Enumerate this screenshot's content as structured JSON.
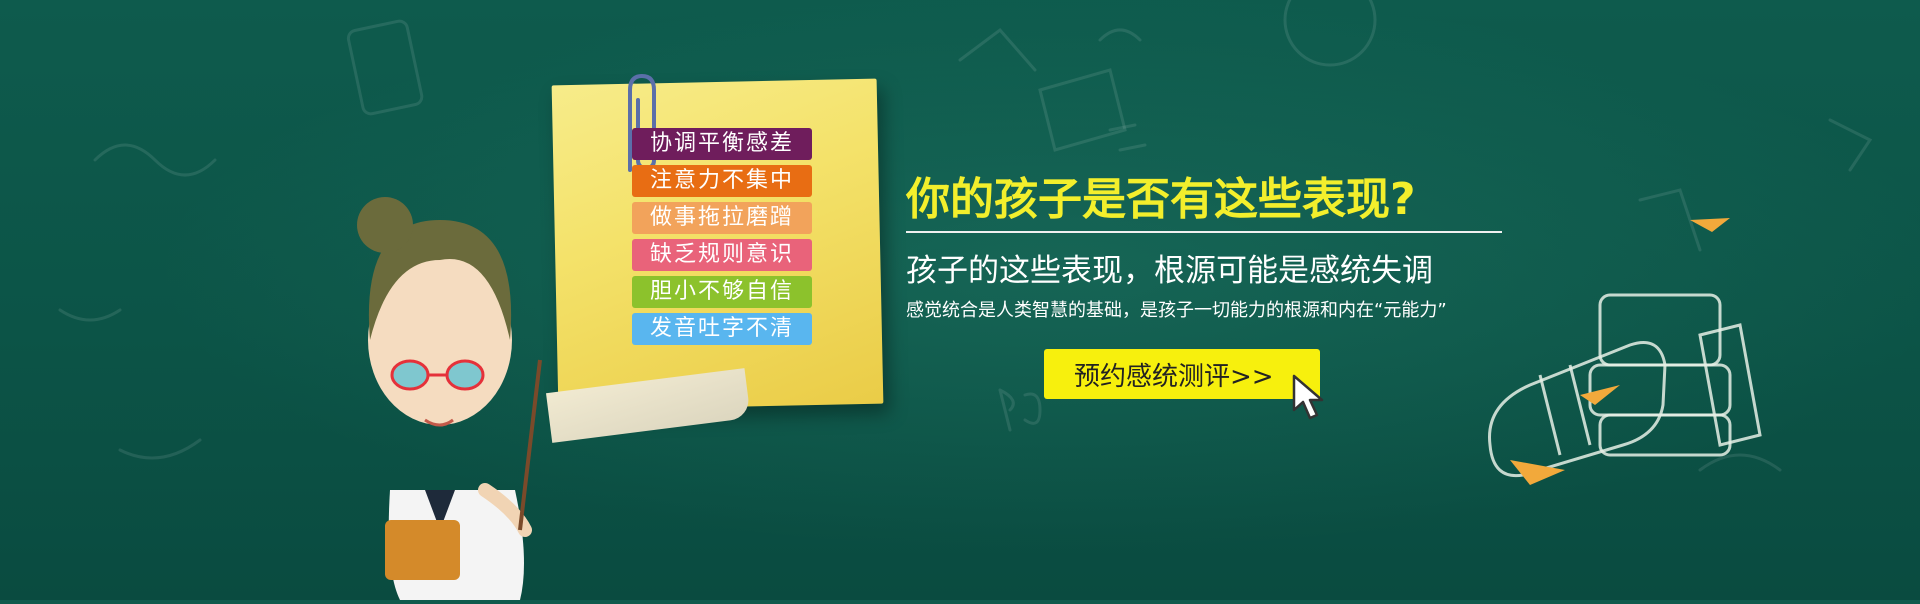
{
  "banner": {
    "note_tags": [
      {
        "label": "协调平衡感差",
        "color": "#6f1d5c"
      },
      {
        "label": "注意力不集中",
        "color": "#e86d13"
      },
      {
        "label": "做事拖拉磨蹭",
        "color": "#f2a35b"
      },
      {
        "label": "缺乏规则意识",
        "color": "#e9637a"
      },
      {
        "label": "胆小不够自信",
        "color": "#8cc22c"
      },
      {
        "label": "发音吐字不清",
        "color": "#59b6ef"
      }
    ],
    "headline": "你的孩子是否有这些表现?",
    "subheadline": "孩子的这些表现，根源可能是感统失调",
    "description": "感觉统合是人类智慧的基础，是孩子一切能力的根源和内在“元能力”",
    "cta_label": "预约感统测评>>",
    "colors": {
      "background": "#0f5a4c",
      "headline": "#f3ef2c",
      "cta_background": "#f7f00d",
      "note": "#f4e26a"
    },
    "icons": [
      "paper-clip-icon",
      "cursor-pointer-icon",
      "teacher-illustration",
      "books-illustration"
    ]
  }
}
